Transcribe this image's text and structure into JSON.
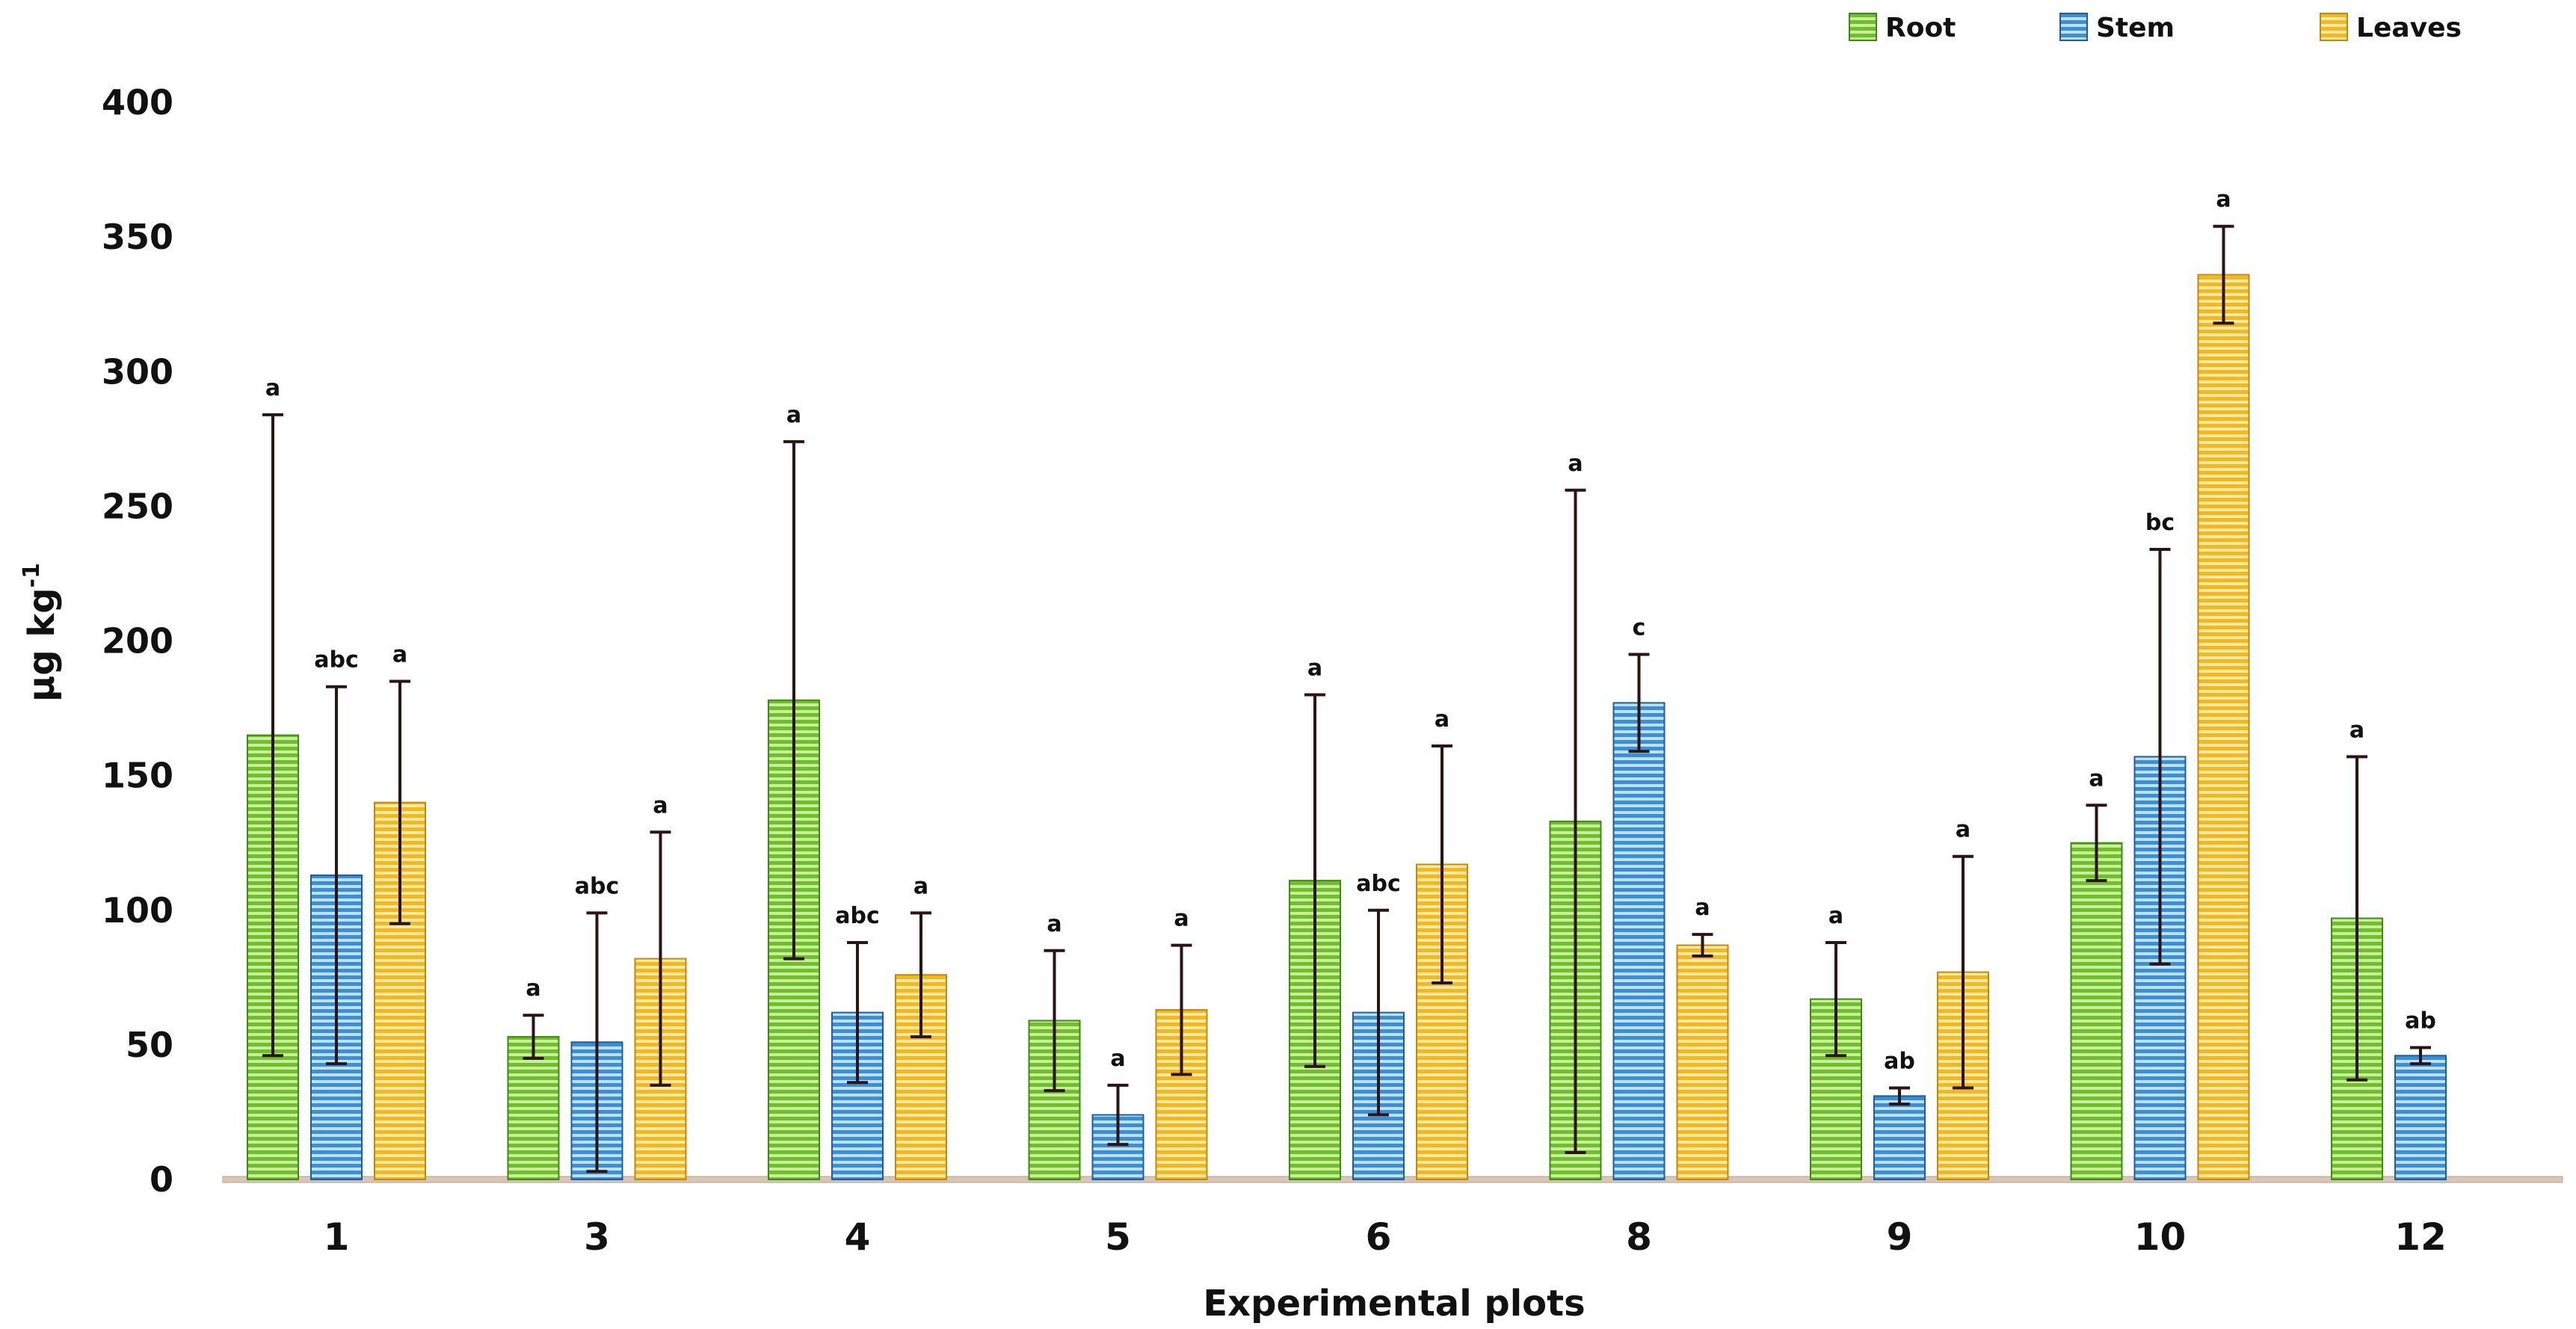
{
  "chart_data": {
    "type": "bar",
    "title": "",
    "xlabel": "Experimental plots",
    "ylabel_main": "µg kg",
    "ylabel_sup": "-1",
    "ylim": [
      0,
      400
    ],
    "yticks": [
      0,
      50,
      100,
      150,
      200,
      250,
      300,
      350,
      400
    ],
    "categories": [
      "1",
      "3",
      "4",
      "5",
      "6",
      "8",
      "9",
      "10",
      "12"
    ],
    "legend_position": "top-right",
    "series": [
      {
        "name": "Root",
        "color": "#6fbf2a",
        "stripe": "#c9ee9d",
        "edge": "#3f8a12",
        "values": [
          165,
          53,
          178,
          59,
          111,
          133,
          67,
          125,
          97
        ],
        "errors": [
          119,
          8,
          96,
          26,
          69,
          123,
          21,
          14,
          60
        ],
        "letters": [
          "a",
          "a",
          "a",
          "a",
          "a",
          "a",
          "a",
          "a",
          "a"
        ]
      },
      {
        "name": "Stem",
        "color": "#3b8fd6",
        "stripe": "#bfe0fa",
        "edge": "#1d5f9e",
        "values": [
          113,
          51,
          62,
          24,
          62,
          177,
          31,
          157,
          46
        ],
        "errors": [
          70,
          48,
          26,
          11,
          38,
          18,
          3,
          77,
          3
        ],
        "letters": [
          "abc",
          "abc",
          "abc",
          "a",
          "abc",
          "c",
          "ab",
          "bc",
          "ab"
        ]
      },
      {
        "name": "Leaves",
        "color": "#f3b81e",
        "stripe": "#fde9a6",
        "edge": "#c4880a",
        "values": [
          140,
          82,
          76,
          63,
          117,
          87,
          77,
          336,
          null
        ],
        "errors": [
          45,
          47,
          23,
          24,
          44,
          4,
          43,
          18,
          null
        ],
        "letters": [
          "a",
          "a",
          "a",
          "a",
          "a",
          "a",
          "a",
          "a",
          null
        ]
      }
    ]
  }
}
